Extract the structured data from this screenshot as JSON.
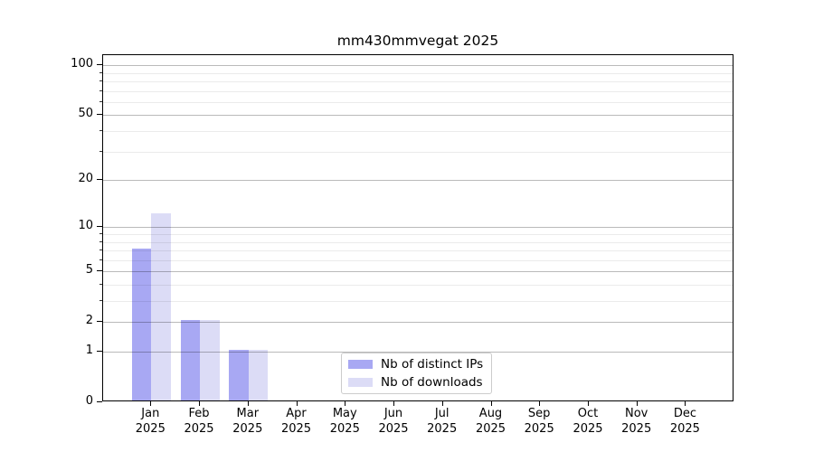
{
  "chart_data": {
    "type": "bar",
    "title": "mm430mmvegat 2025",
    "categories": [
      "Jan 2025",
      "Feb 2025",
      "Mar 2025",
      "Apr 2025",
      "May 2025",
      "Jun 2025",
      "Jul 2025",
      "Aug 2025",
      "Sep 2025",
      "Oct 2025",
      "Nov 2025",
      "Dec 2025"
    ],
    "x_tick_months": [
      "Jan",
      "Feb",
      "Mar",
      "Apr",
      "May",
      "Jun",
      "Jul",
      "Aug",
      "Sep",
      "Oct",
      "Nov",
      "Dec"
    ],
    "x_tick_year": "2025",
    "series": [
      {
        "key": "distinct-ips",
        "name": "Nb of distinct IPs",
        "color": "#a8a8f3",
        "values": [
          7,
          2,
          1,
          0,
          0,
          0,
          0,
          0,
          0,
          0,
          0,
          0
        ]
      },
      {
        "key": "downloads",
        "name": "Nb of downloads",
        "color": "#dcdcf6",
        "values": [
          12,
          2,
          1,
          0,
          0,
          0,
          0,
          0,
          0,
          0,
          0,
          0
        ]
      }
    ],
    "yscale": "log1p",
    "ylim": [
      0,
      116
    ],
    "y_major_ticks": [
      0,
      1,
      2,
      5,
      10,
      20,
      50,
      100
    ],
    "y_minor_ticks": [
      3,
      4,
      6,
      7,
      8,
      9,
      30,
      40,
      60,
      70,
      80,
      90
    ],
    "grid": "both",
    "legend_position": "lower center",
    "axis_color": "#000000",
    "major_grid_color": "#bababa",
    "minor_grid_color": "#ebebeb"
  }
}
